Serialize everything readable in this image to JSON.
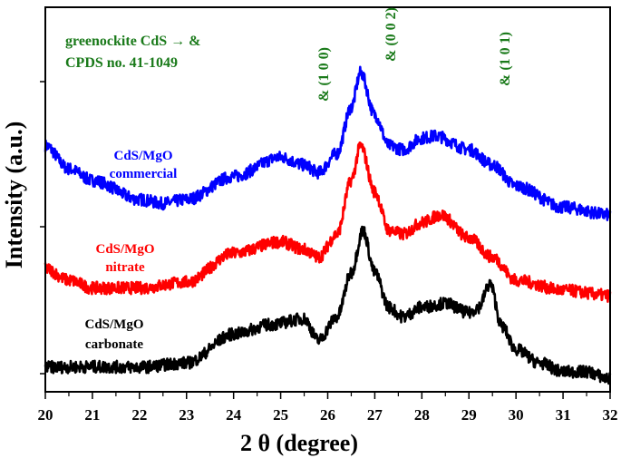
{
  "chart_data": {
    "type": "line",
    "xlabel": "2 θ (degree)",
    "ylabel": "Intensity (a.u.)",
    "xlim": [
      20,
      32
    ],
    "ylim": [
      0,
      100
    ],
    "xticks": [
      "20",
      "21",
      "22",
      "23",
      "24",
      "25",
      "26",
      "27",
      "28",
      "29",
      "30",
      "31",
      "32"
    ],
    "legend_note": [
      "greenockite CdS → &",
      "CPDS no. 41-1049"
    ],
    "peak_annotations": [
      {
        "label": "& (1 0 0)",
        "x": 25.9
      },
      {
        "label": "& (0 0 2)",
        "x": 27.3
      },
      {
        "label": "& (1 0 1)",
        "x": 29.7
      }
    ],
    "series": [
      {
        "name": "CdS/MgO commercial",
        "label_lines": [
          "CdS/MgO",
          "commercial"
        ],
        "color": "#0000ff",
        "x": [
          20,
          20.5,
          21,
          22,
          22.5,
          23,
          24,
          25,
          25.5,
          25.8,
          26.2,
          26.5,
          26.7,
          27,
          27.3,
          27.6,
          28,
          28.3,
          29,
          29.5,
          30,
          31,
          32
        ],
        "y": [
          64,
          58,
          55,
          50,
          49,
          50,
          56,
          61,
          59,
          57,
          62,
          74,
          83,
          72,
          64,
          63,
          66,
          66.5,
          63,
          59,
          53.5,
          48,
          46
        ]
      },
      {
        "name": "CdS/MgO nitrate",
        "label_lines": [
          "CdS/MgO",
          "nitrate"
        ],
        "color": "#ff0000",
        "x": [
          20,
          20.5,
          21,
          22,
          23,
          24,
          25,
          25.5,
          25.8,
          26.2,
          26.5,
          26.7,
          27,
          27.3,
          27.6,
          28,
          28.4,
          29,
          29.5,
          30,
          31,
          32
        ],
        "y": [
          32,
          29,
          27,
          27,
          28.5,
          36,
          39,
          37,
          35,
          41,
          55,
          64,
          52,
          42,
          41,
          44,
          46,
          40,
          35,
          29,
          26.4,
          25
        ]
      },
      {
        "name": "CdS/MgO carbonate",
        "label_lines": [
          "CdS/MgO",
          "carbonate"
        ],
        "color": "#000000",
        "x": [
          20,
          21,
          22,
          23,
          24,
          24.8,
          25.5,
          25.8,
          26.2,
          26.5,
          26.75,
          27,
          27.3,
          27.6,
          28,
          28.5,
          29,
          29.2,
          29.45,
          29.7,
          30,
          30.5,
          31,
          31.5,
          32
        ],
        "y": [
          6.4,
          6.5,
          6.4,
          7.5,
          15,
          17.5,
          19,
          13.4,
          19.5,
          31,
          42,
          31,
          22,
          19.5,
          22,
          23,
          20.5,
          22,
          28,
          17,
          11,
          7.5,
          5.2,
          5.2,
          3.3
        ]
      }
    ]
  },
  "colors": {
    "annotation": "#1a7a1a"
  }
}
